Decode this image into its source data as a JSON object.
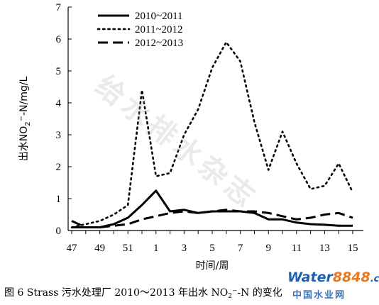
{
  "chart_data": {
    "type": "line",
    "xlabel": "时间/周",
    "ylabel": "出水NO₂⁻-N/mg/L",
    "ylabel_parts": {
      "pre": "出水NO",
      "sub": "2",
      "sup": "−",
      "post": "-N/mg/L"
    },
    "ylim": [
      0,
      7
    ],
    "yticks": [
      "0",
      "1",
      "2",
      "3",
      "4",
      "5",
      "6",
      "7"
    ],
    "xticks": [
      "47",
      "49",
      "51",
      "1",
      "3",
      "5",
      "7",
      "9",
      "11",
      "13",
      "15"
    ],
    "grid": false,
    "legend_position": "top-center",
    "series": [
      {
        "name": "2010~2011",
        "style": "solid",
        "x": [
          "47",
          "48",
          "49",
          "50",
          "51",
          "52",
          "1",
          "2",
          "3",
          "4",
          "5",
          "6",
          "7",
          "8",
          "9",
          "10",
          "11",
          "12",
          "13",
          "14",
          "15"
        ],
        "values": [
          0.1,
          0.1,
          0.1,
          0.2,
          0.4,
          0.8,
          1.25,
          0.6,
          0.65,
          0.55,
          0.6,
          0.6,
          0.6,
          0.55,
          0.35,
          0.35,
          0.25,
          0.2,
          0.18,
          0.15,
          0.15
        ]
      },
      {
        "name": "2011~2012",
        "style": "dotted",
        "x": [
          "47",
          "48",
          "49",
          "50",
          "51",
          "52",
          "1",
          "2",
          "3",
          "4",
          "5",
          "6",
          "7",
          "8",
          "9",
          "10",
          "11",
          "12",
          "13",
          "14",
          "15"
        ],
        "values": [
          0.1,
          0.2,
          0.3,
          0.5,
          0.8,
          4.4,
          1.7,
          1.8,
          3.0,
          3.8,
          5.1,
          5.9,
          5.3,
          3.4,
          1.9,
          3.1,
          2.1,
          1.3,
          1.4,
          2.1,
          1.2
        ]
      },
      {
        "name": "2012~2013",
        "style": "dashed",
        "x": [
          "47",
          "48",
          "49",
          "50",
          "51",
          "52",
          "1",
          "2",
          "3",
          "4",
          "5",
          "6",
          "7",
          "8",
          "9",
          "10",
          "11",
          "12",
          "13",
          "14",
          "15"
        ],
        "values": [
          0.3,
          0.1,
          0.1,
          0.15,
          0.2,
          0.35,
          0.45,
          0.55,
          0.6,
          0.55,
          0.6,
          0.65,
          0.6,
          0.6,
          0.55,
          0.45,
          0.35,
          0.4,
          0.5,
          0.55,
          0.4
        ]
      }
    ]
  },
  "caption": {
    "pre": "图 6   Strass 污水处理厂 2010～2013 年出水 NO",
    "sub": "2",
    "post": "⁻-N 的变化"
  },
  "watermark": "给水排水杂志",
  "logo": {
    "water": "Water",
    "num": "8848",
    "com": ".com",
    "sub": "中国水业网"
  }
}
